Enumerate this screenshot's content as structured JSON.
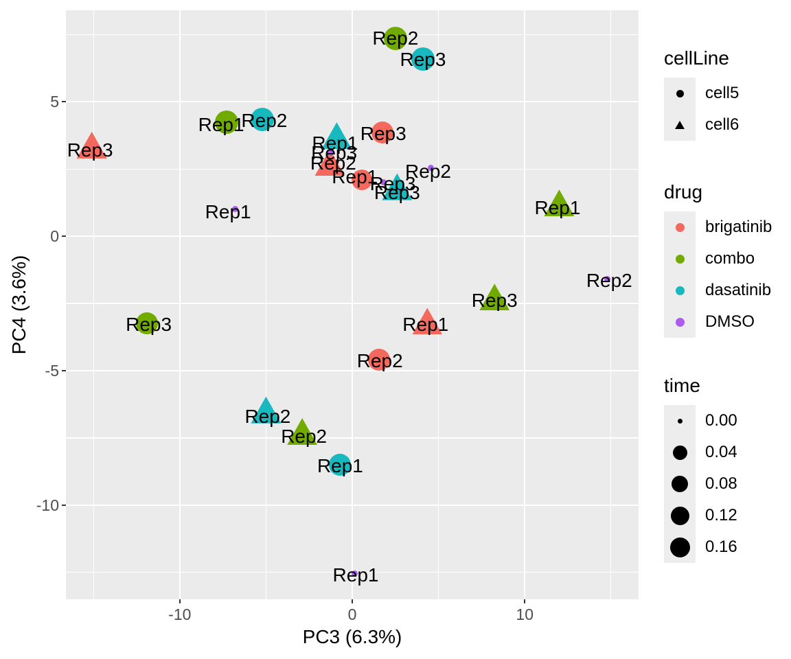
{
  "chart_data": {
    "type": "scatter",
    "xlabel": "PC3 (6.3%)",
    "ylabel": "PC4 (3.6%)",
    "xlim": [
      -16.6,
      16.6
    ],
    "ylim": [
      -13.5,
      8.4
    ],
    "x_major_ticks": [
      -10,
      0,
      10
    ],
    "x_minor_ticks": [
      -15,
      -5,
      5,
      15
    ],
    "y_major_ticks": [
      5,
      0,
      -5,
      -10
    ],
    "y_minor_ticks": [
      7.5,
      2.5,
      -2.5,
      -7.5,
      -12.5
    ],
    "grid": "major+minor white on gray panel",
    "legend_position": "right",
    "points": [
      {
        "replicate": "Rep2",
        "drug": "combo",
        "cellLine": "cell5",
        "shape": "circle",
        "x": 2.5,
        "y": 7.35,
        "lx": 2.5,
        "ly": 7.35,
        "r": 17
      },
      {
        "replicate": "Rep3",
        "drug": "dasatinib",
        "cellLine": "cell5",
        "shape": "circle",
        "x": 4.1,
        "y": 6.6,
        "lx": 4.1,
        "ly": 6.55,
        "r": 17
      },
      {
        "replicate": "Rep1",
        "drug": "combo",
        "cellLine": "cell5",
        "shape": "circle",
        "x": -7.3,
        "y": 4.25,
        "lx": -7.6,
        "ly": 4.15,
        "r": 17
      },
      {
        "replicate": "Rep2",
        "drug": "dasatinib",
        "cellLine": "cell5",
        "shape": "circle",
        "x": -5.2,
        "y": 4.35,
        "lx": -5.1,
        "ly": 4.3,
        "r": 17
      },
      {
        "replicate": "Rep3",
        "drug": "brigatinib",
        "cellLine": "cell6",
        "shape": "triangle",
        "x": -15.1,
        "y": 3.35,
        "lx": -15.2,
        "ly": 3.2
      },
      {
        "replicate": "Rep3",
        "drug": "brigatinib",
        "cellLine": "cell5",
        "shape": "circle",
        "x": 1.75,
        "y": 3.85,
        "lx": 1.8,
        "ly": 3.8,
        "r": 16
      },
      {
        "replicate": "Rep1",
        "drug": "dasatinib",
        "cellLine": "cell6",
        "shape": "triangle",
        "x": -0.9,
        "y": 3.7,
        "lx": -1.0,
        "ly": 3.45
      },
      {
        "replicate": "Rep2",
        "drug": "brigatinib",
        "cellLine": "cell6",
        "shape": "triangle",
        "x": -1.3,
        "y": 2.7,
        "lx": -1.1,
        "ly": 2.7
      },
      {
        "replicate": "Rep1",
        "drug": "brigatinib",
        "cellLine": "cell5",
        "shape": "circle",
        "x": 0.55,
        "y": 2.1,
        "lx": 0.15,
        "ly": 2.2,
        "r": 15
      },
      {
        "replicate": "Rep3",
        "drug": "dasatinib",
        "cellLine": "cell6",
        "shape": "triangle",
        "x": 2.6,
        "y": 1.8,
        "lx": 2.6,
        "ly": 1.6
      },
      {
        "replicate": "Rep1",
        "drug": "combo",
        "cellLine": "cell6",
        "shape": "triangle",
        "x": 12.0,
        "y": 1.2,
        "lx": 11.9,
        "ly": 1.05
      },
      {
        "replicate": "Rep3",
        "drug": "combo",
        "cellLine": "cell6",
        "shape": "triangle",
        "x": 8.25,
        "y": -2.3,
        "lx": 8.25,
        "ly": -2.4
      },
      {
        "replicate": "Rep1",
        "drug": "brigatinib",
        "cellLine": "cell6",
        "shape": "triangle",
        "x": 4.35,
        "y": -3.2,
        "lx": 4.25,
        "ly": -3.3
      },
      {
        "replicate": "Rep3",
        "drug": "combo",
        "cellLine": "cell5",
        "shape": "circle",
        "x": -11.9,
        "y": -3.25,
        "lx": -11.8,
        "ly": -3.3,
        "r": 16
      },
      {
        "replicate": "Rep2",
        "drug": "brigatinib",
        "cellLine": "cell5",
        "shape": "circle",
        "x": 1.55,
        "y": -4.6,
        "lx": 1.6,
        "ly": -4.65,
        "r": 16
      },
      {
        "replicate": "Rep2",
        "drug": "dasatinib",
        "cellLine": "cell6",
        "shape": "triangle",
        "x": -5.0,
        "y": -6.5,
        "lx": -4.9,
        "ly": -6.7
      },
      {
        "replicate": "Rep2",
        "drug": "combo",
        "cellLine": "cell6",
        "shape": "triangle",
        "x": -2.9,
        "y": -7.3,
        "lx": -2.8,
        "ly": -7.45
      },
      {
        "replicate": "Rep1",
        "drug": "dasatinib",
        "cellLine": "cell5",
        "shape": "circle",
        "x": -0.7,
        "y": -8.5,
        "lx": -0.7,
        "ly": -8.55,
        "r": 16
      },
      {
        "replicate": "Rep3",
        "drug": "DMSO",
        "shape": "dot",
        "x": -1.25,
        "y": 3.1,
        "lx": -1.05,
        "ly": 3.1
      },
      {
        "replicate": "Rep3",
        "drug": "DMSO",
        "shape": "dot",
        "x": 1.8,
        "y": 2.0,
        "lx": 2.35,
        "ly": 1.95
      },
      {
        "replicate": "Rep2",
        "drug": "DMSO",
        "shape": "dot",
        "x": 4.55,
        "y": 2.55,
        "lx": 4.4,
        "ly": 2.4
      },
      {
        "replicate": "Rep1",
        "drug": "DMSO",
        "shape": "dot",
        "x": -6.8,
        "y": 1.0,
        "lx": -7.2,
        "ly": 0.9
      },
      {
        "replicate": "Rep2",
        "drug": "DMSO",
        "shape": "dot",
        "x": 14.8,
        "y": -1.6,
        "lx": 14.9,
        "ly": -1.65
      },
      {
        "replicate": "Rep1",
        "drug": "DMSO",
        "shape": "dot",
        "x": 0.15,
        "y": -12.55,
        "lx": 0.2,
        "ly": -12.6
      }
    ]
  },
  "colors": {
    "brigatinib": "#F4695E",
    "combo": "#72AB00",
    "dasatinib": "#17B8BE",
    "DMSO": "#AE5BEF",
    "panel_bg": "#EBEBEB",
    "grid": "#FFFFFF",
    "tick": "#333333",
    "tick_label": "#4D4D4D"
  },
  "legends": {
    "cellLine": {
      "title": "cellLine",
      "entries": [
        {
          "label": "cell5",
          "glyph": "circle"
        },
        {
          "label": "cell6",
          "glyph": "triangle"
        }
      ]
    },
    "drug": {
      "title": "drug",
      "entries": [
        {
          "label": "brigatinib",
          "color": "#F4695E"
        },
        {
          "label": "combo",
          "color": "#72AB00"
        },
        {
          "label": "dasatinib",
          "color": "#17B8BE"
        },
        {
          "label": "DMSO",
          "color": "#AE5BEF"
        }
      ]
    },
    "time": {
      "title": "time",
      "entries": [
        {
          "label": "0.00",
          "d": 7
        },
        {
          "label": "0.04",
          "d": 21
        },
        {
          "label": "0.08",
          "d": 24
        },
        {
          "label": "0.12",
          "d": 27
        },
        {
          "label": "0.16",
          "d": 29
        }
      ]
    }
  }
}
